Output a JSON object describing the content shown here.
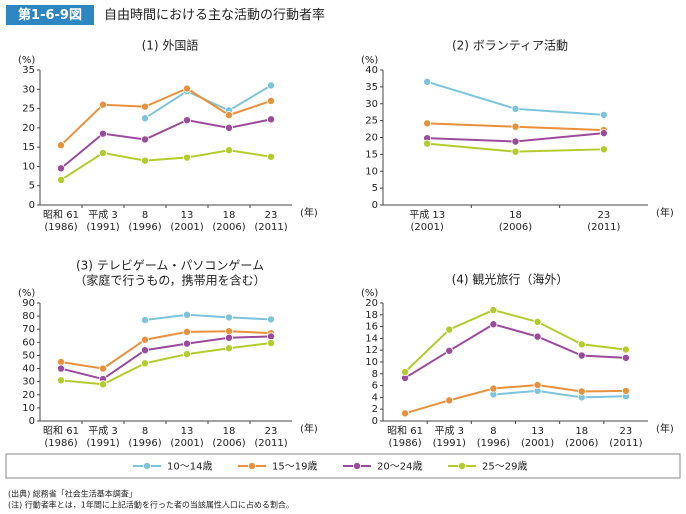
{
  "header": {
    "figure_no": "第1-6-9図",
    "title": "自由時間における主な活動の行動者率"
  },
  "legend": {
    "items": [
      {
        "name": "10～14歳",
        "color": "#7cc4dc"
      },
      {
        "name": "15～19歳",
        "color": "#e8913c"
      },
      {
        "name": "20～24歳",
        "color": "#9b4a9c"
      },
      {
        "name": "25～29歳",
        "color": "#b4cb2b"
      }
    ]
  },
  "chart_data": [
    {
      "type": "line",
      "title": "(1) 外国語",
      "categories": [
        "昭和 61",
        "平成 3",
        "8",
        "13",
        "18",
        "23"
      ],
      "category_years": [
        "(1986)",
        "(1991)",
        "(1996)",
        "(2001)",
        "(2006)",
        "(2011)"
      ],
      "y_label": "(%)",
      "x_label": "(年)",
      "ylim": [
        0,
        35
      ],
      "yticks": [
        0,
        5,
        10,
        15,
        20,
        25,
        30,
        35
      ],
      "series": [
        {
          "values": [
            null,
            null,
            22.5,
            29.5,
            24.5,
            31
          ]
        },
        {
          "values": [
            15.5,
            26,
            25.5,
            30.2,
            23.3,
            27
          ]
        },
        {
          "values": [
            9.5,
            18.5,
            17,
            22,
            20,
            22.2
          ]
        },
        {
          "values": [
            6.5,
            13.5,
            11.5,
            12.3,
            14.2,
            12.5
          ]
        }
      ]
    },
    {
      "type": "line",
      "title": "(2) ボランティア活動",
      "categories": [
        "平成 13",
        "18",
        "23"
      ],
      "category_years": [
        "(2001)",
        "(2006)",
        "(2011)"
      ],
      "y_label": "(%)",
      "x_label": "(年)",
      "ylim": [
        0,
        40
      ],
      "yticks": [
        0,
        5,
        10,
        15,
        20,
        25,
        30,
        35,
        40
      ],
      "series": [
        {
          "values": [
            36.5,
            28.5,
            26.7
          ]
        },
        {
          "values": [
            24.2,
            23.2,
            22.2
          ]
        },
        {
          "values": [
            19.8,
            18.8,
            21.3
          ]
        },
        {
          "values": [
            18.2,
            15.8,
            16.5
          ]
        }
      ]
    },
    {
      "type": "line",
      "title": "(3) テレビゲーム・パソコンゲーム",
      "subtitle": "（家庭で行うもの，携帯用を含む）",
      "categories": [
        "昭和 61",
        "平成 3",
        "8",
        "13",
        "18",
        "23"
      ],
      "category_years": [
        "(1986)",
        "(1991)",
        "(1996)",
        "(2001)",
        "(2006)",
        "(2011)"
      ],
      "y_label": "(%)",
      "x_label": "(年)",
      "ylim": [
        0,
        90
      ],
      "yticks": [
        0,
        10,
        20,
        30,
        40,
        50,
        60,
        70,
        80,
        90
      ],
      "series": [
        {
          "values": [
            null,
            null,
            77,
            81,
            79,
            77.5
          ]
        },
        {
          "values": [
            45,
            40,
            62,
            68,
            68.5,
            67
          ]
        },
        {
          "values": [
            40,
            32,
            54,
            59,
            63.5,
            64.5
          ]
        },
        {
          "values": [
            31,
            28,
            44,
            51,
            55.5,
            59.5
          ]
        }
      ]
    },
    {
      "type": "line",
      "title": "(4) 観光旅行（海外）",
      "categories": [
        "昭和 61",
        "平成 3",
        "8",
        "13",
        "18",
        "23"
      ],
      "category_years": [
        "(1986)",
        "(1991)",
        "(1996)",
        "(2001)",
        "(2006)",
        "(2011)"
      ],
      "y_label": "(%)",
      "x_label": "(年)",
      "ylim": [
        0,
        20
      ],
      "yticks": [
        0,
        2,
        4,
        6,
        8,
        10,
        12,
        14,
        16,
        18,
        20
      ],
      "series": [
        {
          "values": [
            null,
            null,
            4.5,
            5.1,
            4.0,
            4.2
          ]
        },
        {
          "values": [
            1.3,
            3.5,
            5.5,
            6.1,
            5.0,
            5.1
          ]
        },
        {
          "values": [
            7.3,
            11.9,
            16.4,
            14.3,
            11.1,
            10.7
          ]
        },
        {
          "values": [
            8.3,
            15.5,
            18.8,
            16.8,
            13,
            12.1
          ]
        }
      ]
    }
  ],
  "notes": [
    "(出典) 総務省「社会生活基本調査」",
    "(注) 行動者率とは，1年間に上記活動を行った者の当該属性人口に占める割合。"
  ]
}
